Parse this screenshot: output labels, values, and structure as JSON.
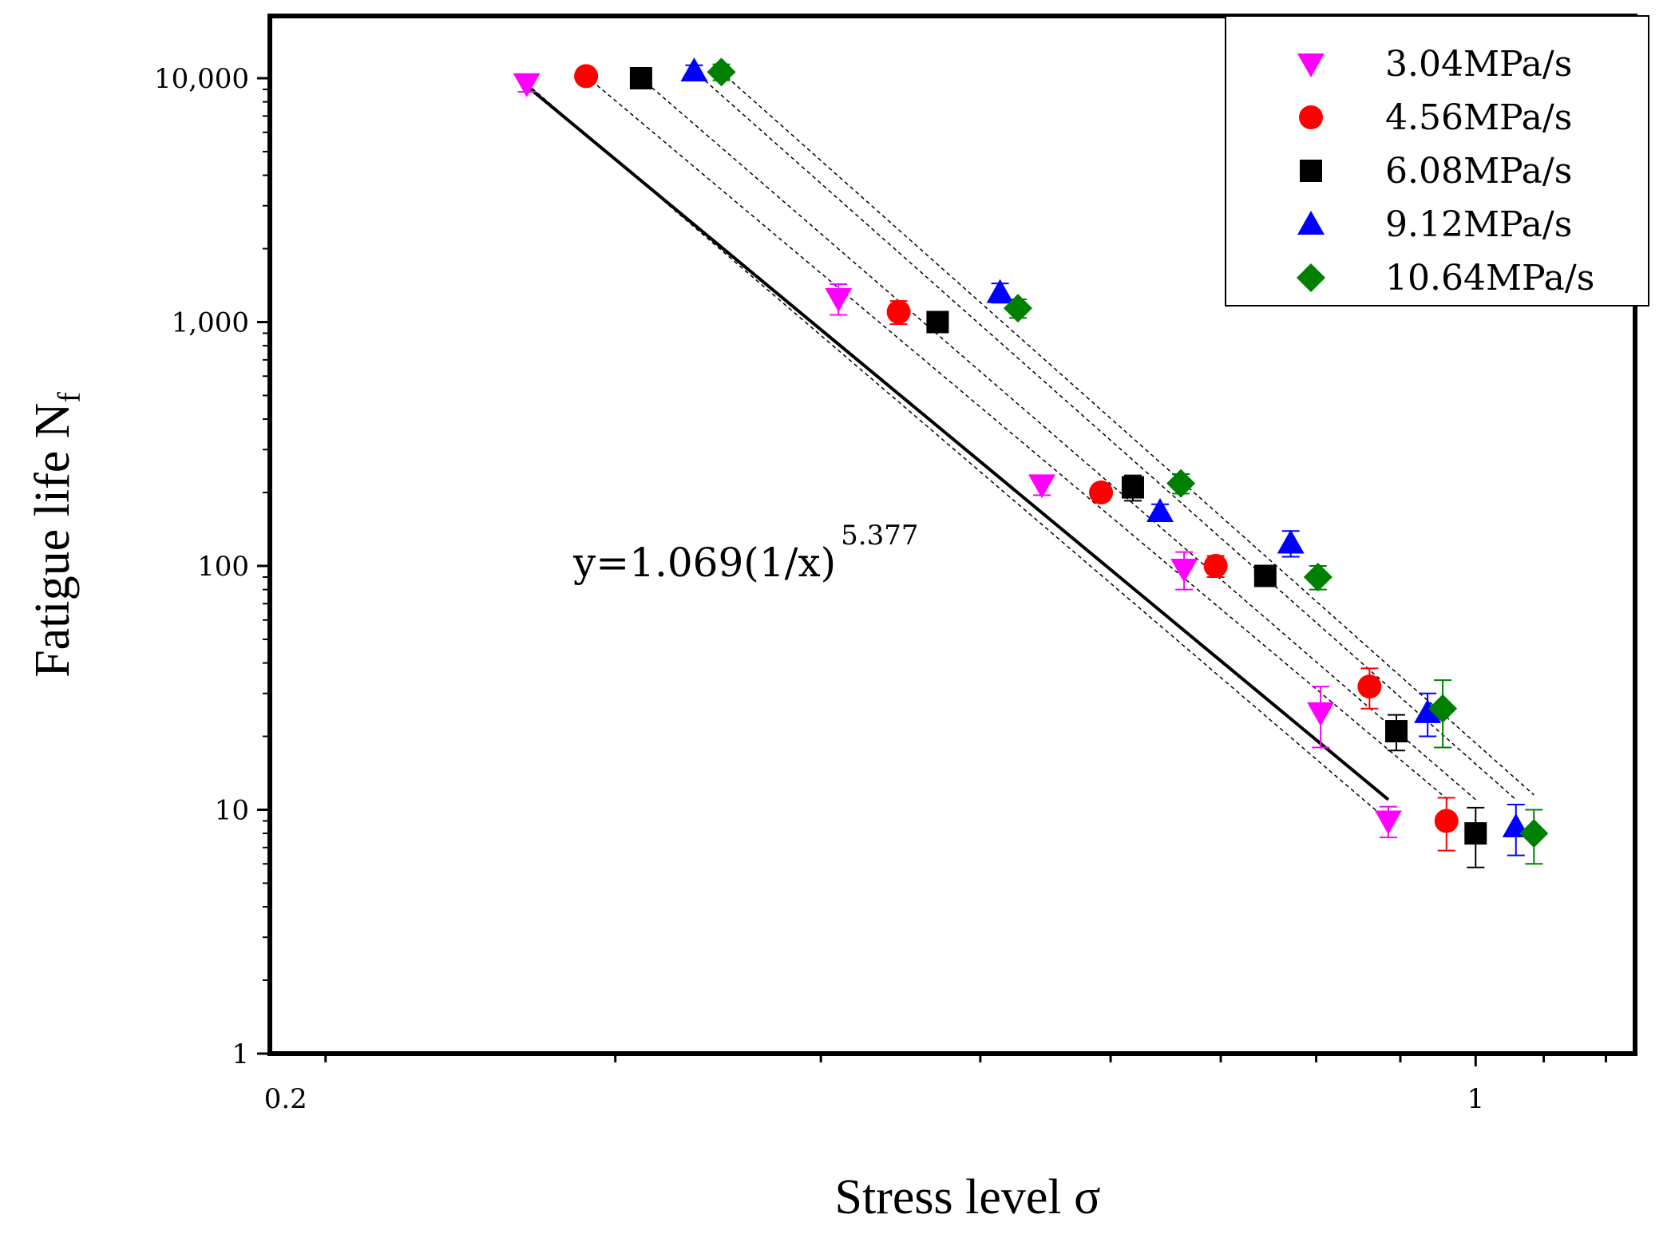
{
  "chart_data": {
    "type": "scatter",
    "x_scale": "log",
    "y_scale": "log",
    "xlabel": "Stress level σ",
    "ylabel": "Fatigue life N",
    "ylabel_subscript": "f",
    "xlim": [
      0.185,
      1.25
    ],
    "ylim": [
      1,
      18000
    ],
    "x_tick_labels": [
      {
        "value": 0.2,
        "label": "0.2"
      },
      {
        "value": 1,
        "label": "1"
      }
    ],
    "y_tick_labels": [
      {
        "value": 1,
        "label": "1"
      },
      {
        "value": 10,
        "label": "10"
      },
      {
        "value": 100,
        "label": "100"
      },
      {
        "value": 1000,
        "label": "1,000"
      },
      {
        "value": 10000,
        "label": "10,000"
      }
    ],
    "legend_position": "top-right",
    "annotation": {
      "base": "y=1.069(1/x)",
      "exponent": "5.377"
    },
    "fit_line": {
      "label": "y=1.069(1/x)^5.377",
      "x": [
        0.264,
        0.885
      ],
      "y": [
        9500,
        11
      ],
      "style": "solid"
    },
    "series": [
      {
        "name": "3.04MPa/s",
        "color": "#ff00ff",
        "marker": "triangle-down",
        "points": [
          {
            "x": 0.265,
            "y": 9500,
            "err": 700
          },
          {
            "x": 0.41,
            "y": 1250,
            "err": 180
          },
          {
            "x": 0.545,
            "y": 215,
            "err": 20
          },
          {
            "x": 0.665,
            "y": 97,
            "err": 17
          },
          {
            "x": 0.805,
            "y": 25,
            "err": 7
          },
          {
            "x": 0.885,
            "y": 9,
            "err": 1.3
          }
        ],
        "trend": {
          "x": [
            0.265,
            0.885
          ],
          "y": [
            9500,
            9
          ]
        }
      },
      {
        "name": "4.56MPa/s",
        "color": "#ff0000",
        "marker": "circle",
        "points": [
          {
            "x": 0.288,
            "y": 10200,
            "err": 500
          },
          {
            "x": 0.446,
            "y": 1100,
            "err": 120
          },
          {
            "x": 0.592,
            "y": 200,
            "err": 15
          },
          {
            "x": 0.695,
            "y": 100,
            "err": 10
          },
          {
            "x": 0.862,
            "y": 32,
            "err": 6
          },
          {
            "x": 0.96,
            "y": 9,
            "err": 2.2
          }
        ],
        "trend": {
          "x": [
            0.288,
            0.962
          ],
          "y": [
            10200,
            11
          ]
        }
      },
      {
        "name": "6.08MPa/s",
        "color": "#000000",
        "marker": "square",
        "points": [
          {
            "x": 0.311,
            "y": 10000,
            "err": 300
          },
          {
            "x": 0.471,
            "y": 1000,
            "err": 80
          },
          {
            "x": 0.619,
            "y": 210,
            "err": 25
          },
          {
            "x": 0.745,
            "y": 91,
            "err": 8
          },
          {
            "x": 0.895,
            "y": 21,
            "err": 3.5
          },
          {
            "x": 1.0,
            "y": 8,
            "err": 2.2
          }
        ],
        "trend": {
          "x": [
            0.311,
            1.0
          ],
          "y": [
            10000,
            11
          ]
        }
      },
      {
        "name": "9.12MPa/s",
        "color": "#0000ff",
        "marker": "triangle-up",
        "points": [
          {
            "x": 0.335,
            "y": 10700,
            "err": 600
          },
          {
            "x": 0.514,
            "y": 1320,
            "err": 120
          },
          {
            "x": 0.643,
            "y": 167,
            "err": 12
          },
          {
            "x": 0.772,
            "y": 124,
            "err": 15
          },
          {
            "x": 0.935,
            "y": 25,
            "err": 5
          },
          {
            "x": 1.058,
            "y": 8.5,
            "err": 2
          }
        ],
        "trend": {
          "x": [
            0.335,
            1.058
          ],
          "y": [
            10700,
            11
          ]
        }
      },
      {
        "name": "10.64MPa/s",
        "color": "#008000",
        "marker": "diamond",
        "points": [
          {
            "x": 0.348,
            "y": 10600,
            "err": 800
          },
          {
            "x": 0.527,
            "y": 1140,
            "err": 100
          },
          {
            "x": 0.662,
            "y": 218,
            "err": 20
          },
          {
            "x": 0.802,
            "y": 90,
            "err": 10
          },
          {
            "x": 0.955,
            "y": 26,
            "err": 8
          },
          {
            "x": 1.085,
            "y": 8,
            "err": 2
          }
        ],
        "trend": {
          "x": [
            0.348,
            1.085
          ],
          "y": [
            10600,
            11.5
          ]
        }
      }
    ]
  }
}
